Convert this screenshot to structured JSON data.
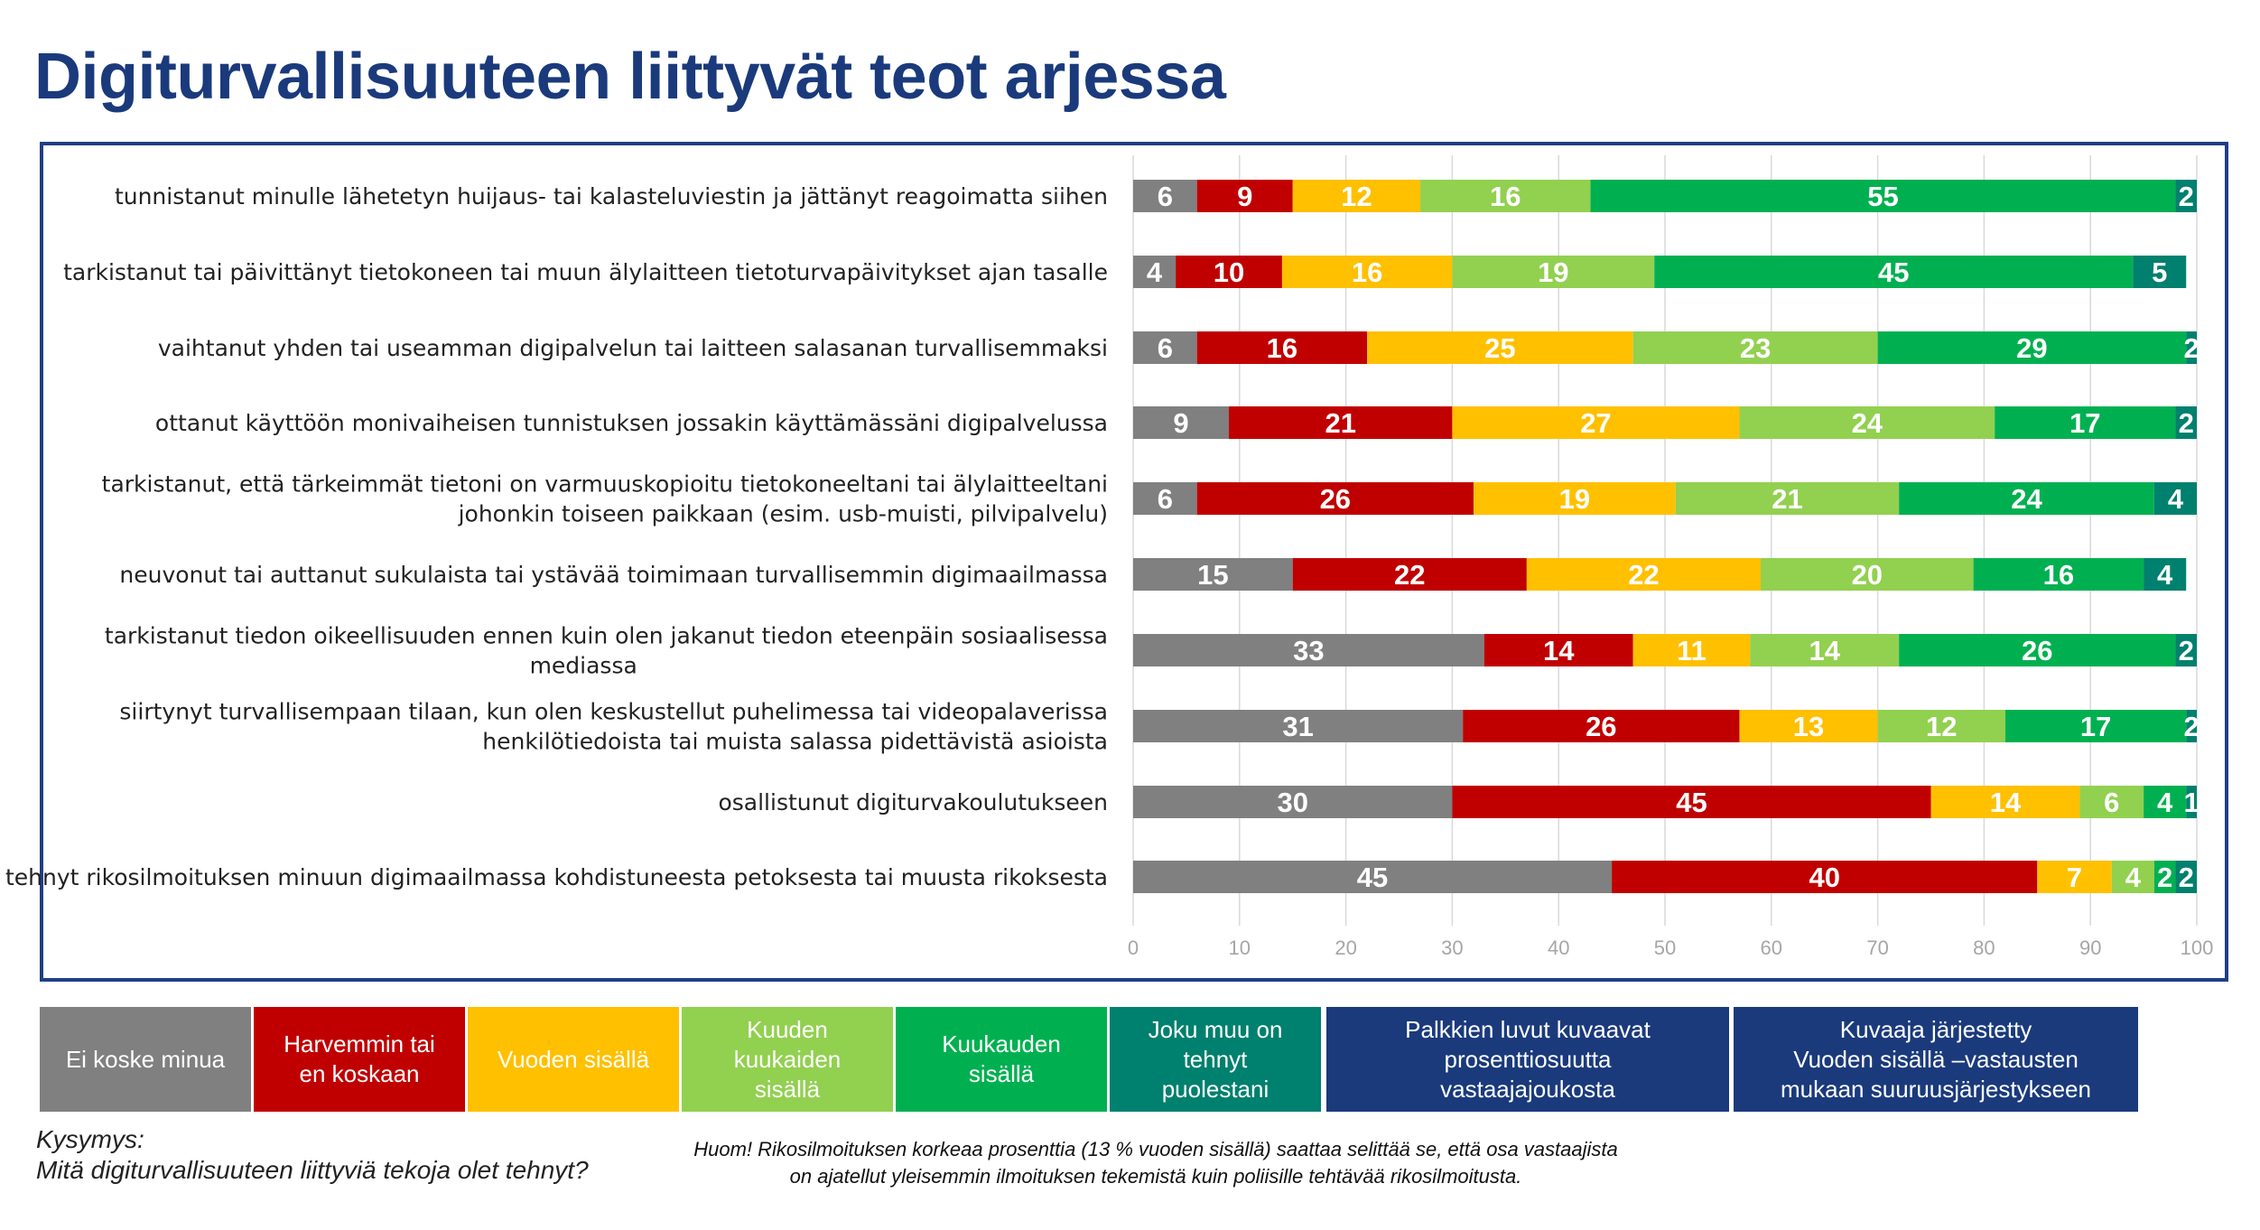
{
  "page": {
    "title": "Digiturvallisuuteen liittyvät teot arjessa",
    "question": "Kysymys:\nMitä digiturvallisuuteen liittyviä tekoja olet tehnyt?",
    "note": "Huom! Rikosilmoituksen korkeaa prosenttia (13 % vuoden sisällä) saattaa selittää se, että osa vastaajista on ajatellut yleisemmin ilmoituksen tekemistä kuin poliisille tehtävää rikosilmoitusta."
  },
  "legend": [
    {
      "label": "Ei koske minua",
      "color": "#808080"
    },
    {
      "label": "Harvemmin tai\nen koskaan",
      "color": "#c00000"
    },
    {
      "label": "Vuoden sisällä",
      "color": "#ffc000"
    },
    {
      "label": "Kuuden\nkuukaiden\nsisällä",
      "color": "#92d050"
    },
    {
      "label": "Kuukauden\nsisällä",
      "color": "#00b050"
    },
    {
      "label": "Joku muu on\ntehnyt\npuolestani",
      "color": "#00806e"
    },
    {
      "label": "Palkkien luvut kuvaavat\nprosenttiosuutta\nvastaajajoukosta",
      "color": "#1a3a7c"
    },
    {
      "label": "Kuvaaja järjestetty\nVuoden sisällä –vastausten\nmukaan suuruusjärjestykseen",
      "color": "#1a3a7c"
    }
  ],
  "chart_data": {
    "type": "bar",
    "orientation": "horizontal",
    "stacked": true,
    "xlim": [
      0,
      100
    ],
    "xticks": [
      0,
      10,
      20,
      30,
      40,
      50,
      60,
      70,
      80,
      90,
      100
    ],
    "grid": true,
    "categories": [
      [
        "tunnistanut minulle lähetetyn huijaus- tai kalasteluviestin ja jättänyt reagoimatta siihen"
      ],
      [
        "tarkistanut tai päivittänyt tietokoneen tai muun älylaitteen tietoturvapäivitykset ajan tasalle"
      ],
      [
        "vaihtanut yhden tai useamman digipalvelun tai laitteen salasanan turvallisemmaksi"
      ],
      [
        "ottanut käyttöön monivaiheisen tunnistuksen jossakin käyttämässäni digipalvelussa"
      ],
      [
        "tarkistanut, että tärkeimmät tietoni on varmuuskopioitu tietokoneeltani tai älylaitteeltani",
        "johonkin toiseen paikkaan (esim. usb-muisti, pilvipalvelu)"
      ],
      [
        "neuvonut tai auttanut sukulaista tai ystävää toimimaan turvallisemmin digimaailmassa"
      ],
      [
        "tarkistanut tiedon oikeellisuuden ennen kuin olen jakanut tiedon eteenpäin sosiaalisessa",
        "mediassa"
      ],
      [
        "siirtynyt turvallisempaan tilaan, kun olen keskustellut puhelimessa tai videopalaverissa",
        "henkilötiedoista tai muista salassa pidettävistä asioista"
      ],
      [
        "osallistunut digiturvakoulutukseen"
      ],
      [
        "tehnyt rikosilmoituksen minuun digimaailmassa kohdistuneesta petoksesta tai muusta rikoksesta"
      ]
    ],
    "series": [
      {
        "name": "Ei koske minua",
        "color": "#808080",
        "values": [
          6,
          4,
          6,
          9,
          6,
          15,
          33,
          31,
          30,
          45
        ]
      },
      {
        "name": "Harvemmin tai en koskaan",
        "color": "#c00000",
        "values": [
          9,
          10,
          16,
          21,
          26,
          22,
          14,
          26,
          45,
          40
        ]
      },
      {
        "name": "Vuoden sisällä",
        "color": "#ffc000",
        "values": [
          12,
          16,
          25,
          27,
          19,
          22,
          11,
          13,
          14,
          7
        ]
      },
      {
        "name": "Kuuden kuukaiden sisällä",
        "color": "#92d050",
        "values": [
          16,
          19,
          23,
          24,
          21,
          20,
          14,
          12,
          6,
          4
        ]
      },
      {
        "name": "Kuukauden sisällä",
        "color": "#00b050",
        "values": [
          55,
          45,
          29,
          17,
          24,
          16,
          26,
          17,
          4,
          2
        ]
      },
      {
        "name": "Joku muu on tehnyt puolestani",
        "color": "#00806e",
        "values": [
          2,
          5,
          2,
          2,
          4,
          4,
          2,
          2,
          1,
          2
        ]
      }
    ]
  }
}
